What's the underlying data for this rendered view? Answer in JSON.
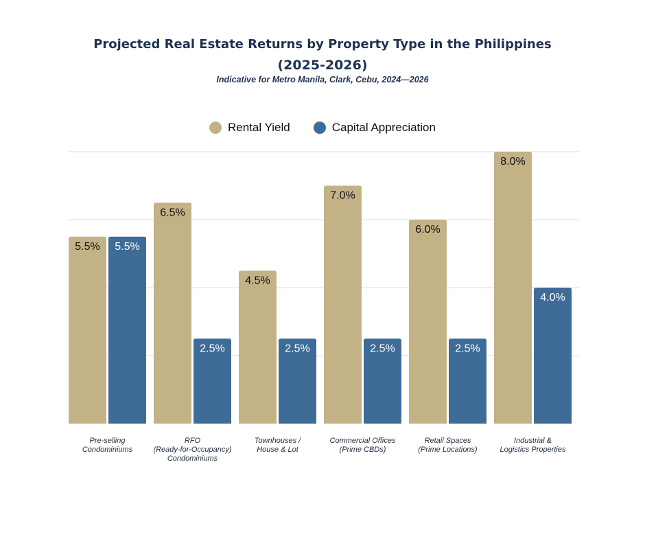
{
  "chart_data": {
    "type": "bar",
    "title_line1": "Projected Real Estate Returns by Property Type in the Philippines",
    "title_line2": "(2025-2026)",
    "subtitle": "Indicative for Metro Manila, Clark, Cebu, 2024—2026",
    "categories": [
      "Pre-selling\nCondominiums",
      "RFO\n(Ready-for-Occupancy)\nCondominiums",
      "Townhouses /\nHouse & Lot",
      "Commercial Offices\n(Prime CBDs)",
      "Retail Spaces\n(Prime Locations)",
      "Industrial &\nLogistics Properties"
    ],
    "series": [
      {
        "name": "Rental Yield",
        "color": "#c2b286",
        "values": [
          5.5,
          6.5,
          4.5,
          7.0,
          6.0,
          8.0
        ],
        "labels": [
          "5.5%",
          "6.5%",
          "4.5%",
          "7.0%",
          "6.0%",
          "8.0%"
        ]
      },
      {
        "name": "Capital Appreciation",
        "color": "#3f6c97",
        "values": [
          5.5,
          2.5,
          2.5,
          2.5,
          2.5,
          4.0
        ],
        "labels": [
          "5.5%",
          "2.5%",
          "2.5%",
          "2.5%",
          "2.5%",
          "4.0%"
        ]
      }
    ],
    "ylim": [
      0,
      8
    ],
    "grid": true,
    "legend": "top-center"
  }
}
